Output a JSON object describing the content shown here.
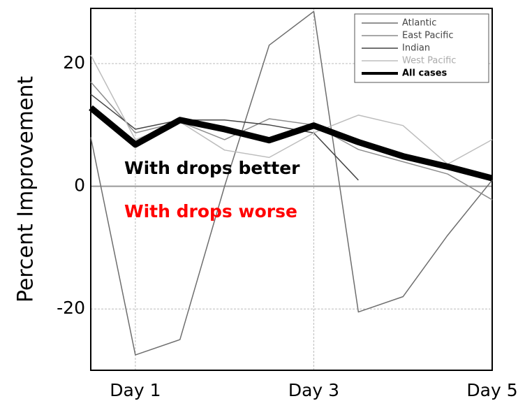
{
  "chart_data": {
    "type": "line",
    "y_label": "Percent Improvement",
    "x": [
      0.5,
      1,
      1.5,
      2,
      2.5,
      3,
      3.5,
      4,
      4.5,
      5
    ],
    "xlim": [
      0.5,
      5
    ],
    "xticks": [
      {
        "value": 1,
        "label": "Day 1"
      },
      {
        "value": 3,
        "label": "Day 3"
      },
      {
        "value": 5,
        "label": "Day 5"
      }
    ],
    "ylim": [
      -30,
      29
    ],
    "yticks": [
      -20,
      0,
      20
    ],
    "grid": true,
    "legend": "upper right",
    "series": [
      {
        "name": "Atlantic",
        "color": "#6e6e6e",
        "width": 1.5,
        "values": [
          8,
          -27.5,
          -25,
          0,
          23,
          28.5,
          -20.5,
          -18,
          -8,
          1
        ]
      },
      {
        "name": "East Pacific",
        "color": "#8c8c8c",
        "width": 1.5,
        "values": [
          17,
          8.7,
          10.5,
          7.6,
          11,
          10,
          6,
          4,
          2,
          -2.2
        ]
      },
      {
        "name": "Indian",
        "color": "#444444",
        "width": 1.5,
        "values": [
          15,
          9.3,
          10.8,
          10.8,
          10,
          8.7,
          1,
          null,
          null,
          null
        ]
      },
      {
        "name": "West Pacific",
        "color": "#bdbdbd",
        "width": 1.5,
        "values": [
          21.4,
          7.6,
          10.5,
          5.9,
          4.7,
          8.7,
          11.6,
          9.9,
          3.6,
          7.6
        ]
      },
      {
        "name": "All cases",
        "color": "#000000",
        "width": 9,
        "values": [
          12.8,
          6.8,
          10.8,
          9.3,
          7.5,
          9.9,
          7.2,
          4.9,
          3.2,
          1.3
        ]
      }
    ],
    "annotations": [
      {
        "text": "With drops better",
        "color": "#000000"
      },
      {
        "text": "With drops worse",
        "color": "#ff0000"
      }
    ]
  }
}
